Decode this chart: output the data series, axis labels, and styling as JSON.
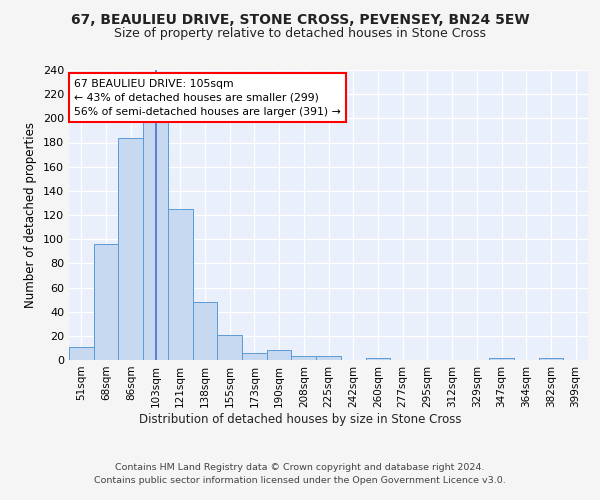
{
  "title1": "67, BEAULIEU DRIVE, STONE CROSS, PEVENSEY, BN24 5EW",
  "title2": "Size of property relative to detached houses in Stone Cross",
  "xlabel": "Distribution of detached houses by size in Stone Cross",
  "ylabel": "Number of detached properties",
  "categories": [
    "51sqm",
    "68sqm",
    "86sqm",
    "103sqm",
    "121sqm",
    "138sqm",
    "155sqm",
    "173sqm",
    "190sqm",
    "208sqm",
    "225sqm",
    "242sqm",
    "260sqm",
    "277sqm",
    "295sqm",
    "312sqm",
    "329sqm",
    "347sqm",
    "364sqm",
    "382sqm",
    "399sqm"
  ],
  "values": [
    11,
    96,
    184,
    200,
    125,
    48,
    21,
    6,
    8,
    3,
    3,
    0,
    2,
    0,
    0,
    0,
    0,
    2,
    0,
    2,
    0
  ],
  "bar_color": "#c6d9f0",
  "bar_edge_color": "#5b9bd5",
  "annotation_line": "67 BEAULIEU DRIVE: 105sqm",
  "annotation_line2": "← 43% of detached houses are smaller (299)",
  "annotation_line3": "56% of semi-detached houses are larger (391) →",
  "annotation_box_color": "white",
  "annotation_box_edge": "red",
  "ylim": [
    0,
    240
  ],
  "yticks": [
    0,
    20,
    40,
    60,
    80,
    100,
    120,
    140,
    160,
    180,
    200,
    220,
    240
  ],
  "footer1": "Contains HM Land Registry data © Crown copyright and database right 2024.",
  "footer2": "Contains public sector information licensed under the Open Government Licence v3.0.",
  "bg_color": "#eaf0fb",
  "grid_color": "#ffffff",
  "fig_bg_color": "#f5f5f5",
  "title_fontsize": 10,
  "subtitle_fontsize": 9,
  "highlight_bin_index": 3
}
